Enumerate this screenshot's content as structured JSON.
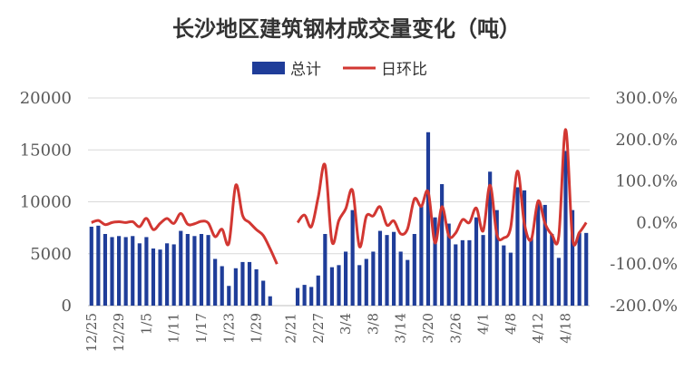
{
  "colors": {
    "bar": "#1F3D99",
    "line": "#D23732",
    "grid": "#D9D9D9",
    "axis": "#BFBFBF",
    "text": "#595959"
  },
  "chart_data": {
    "type": "bar",
    "title": "长沙地区建筑钢材成交量变化（吨）",
    "legend": {
      "placement": "top-center",
      "bar_label": "总计",
      "line_label": "日环比"
    },
    "series": [
      {
        "name": "总计",
        "type": "bar",
        "axis": "left",
        "values": [
          7600,
          7700,
          6900,
          6600,
          6700,
          6600,
          6700,
          6000,
          6600,
          5500,
          5400,
          6000,
          5900,
          7200,
          6900,
          6700,
          6900,
          6800,
          4500,
          3800,
          1900,
          3600,
          4200,
          4200,
          3500,
          2400,
          900,
          null,
          null,
          null,
          1700,
          2000,
          1800,
          2900,
          6900,
          3700,
          3900,
          5200,
          9200,
          3900,
          4500,
          5200,
          7200,
          6800,
          7100,
          5200,
          4400,
          6900,
          9600,
          16700,
          8500,
          11700,
          7900,
          5900,
          6300,
          6300,
          8500,
          6800,
          12900,
          9200,
          5800,
          5100,
          11400,
          11100,
          6500,
          9900,
          9700,
          6900,
          4600,
          14900,
          9200,
          7000,
          7000
        ]
      },
      {
        "name": "日环比",
        "type": "line",
        "axis": "right",
        "values": [
          0,
          5,
          -5,
          0,
          2,
          0,
          2,
          -10,
          10,
          -17,
          -2,
          10,
          -2,
          22,
          -4,
          -3,
          3,
          -1,
          -34,
          -16,
          -50,
          90,
          17,
          0,
          -17,
          -31,
          -63,
          -100,
          null,
          null,
          0,
          18,
          -10,
          61,
          138,
          -46,
          5,
          33,
          77,
          -58,
          15,
          16,
          38,
          -6,
          4,
          -27,
          -15,
          57,
          39,
          74,
          -49,
          38,
          -32,
          -25,
          7,
          0,
          35,
          -20,
          90,
          -29,
          -37,
          -12,
          124,
          -3,
          -41,
          52,
          -2,
          -29,
          -33,
          224,
          -38,
          -24,
          0
        ]
      }
    ],
    "x_tick_labels": [
      "12/25",
      "12/29",
      "1/5",
      "1/11",
      "1/17",
      "1/23",
      "1/29",
      "2/21",
      "2/27",
      "3/4",
      "3/8",
      "3/14",
      "3/20",
      "3/26",
      "4/1",
      "4/8",
      "4/12",
      "4/18"
    ],
    "x_tick_index": [
      0,
      4,
      8,
      12,
      16,
      20,
      24,
      29,
      33,
      37,
      41,
      45,
      49,
      53,
      57,
      61,
      65,
      69
    ],
    "y_left": {
      "ylim": [
        0,
        20000
      ],
      "ticks": [
        "0",
        "5000",
        "10000",
        "15000",
        "20000"
      ]
    },
    "y_right": {
      "ylim": [
        -200,
        300
      ],
      "ticks": [
        "-200.0%",
        "-100.0%",
        "0.0%",
        "100.0%",
        "200.0%",
        "300.0%"
      ]
    },
    "grid": true
  }
}
